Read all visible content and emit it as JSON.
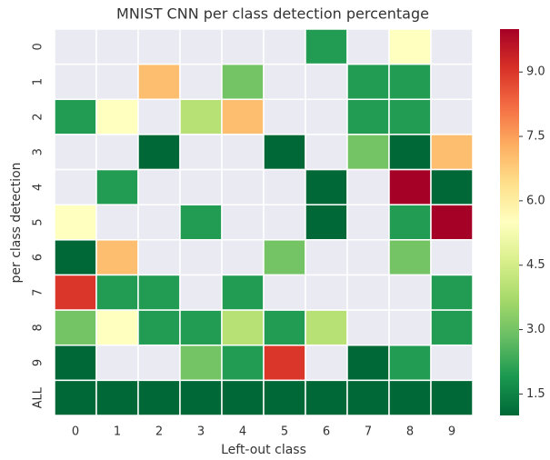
{
  "chart_data": {
    "type": "heatmap",
    "title": "MNIST CNN per class detection percentage",
    "xlabel": "Left-out class",
    "ylabel": "per class detection",
    "x_categories": [
      "0",
      "1",
      "2",
      "3",
      "4",
      "5",
      "6",
      "7",
      "8",
      "9"
    ],
    "y_categories": [
      "0",
      "1",
      "2",
      "3",
      "4",
      "5",
      "6",
      "7",
      "8",
      "9",
      "ALL"
    ],
    "values": [
      [
        null,
        null,
        null,
        null,
        null,
        null,
        2,
        null,
        5.5,
        null
      ],
      [
        null,
        null,
        7,
        null,
        3,
        null,
        null,
        2,
        2,
        null
      ],
      [
        2,
        5.5,
        null,
        4,
        7,
        null,
        null,
        2,
        2,
        null
      ],
      [
        null,
        null,
        1,
        null,
        null,
        1,
        null,
        3,
        1,
        7
      ],
      [
        null,
        2,
        null,
        null,
        null,
        null,
        1,
        null,
        10,
        1
      ],
      [
        5.5,
        null,
        null,
        2,
        null,
        null,
        1,
        null,
        2,
        10
      ],
      [
        1,
        7,
        null,
        null,
        null,
        3,
        null,
        null,
        3,
        null
      ],
      [
        9,
        2,
        2,
        null,
        2,
        null,
        null,
        null,
        null,
        2
      ],
      [
        3,
        5.5,
        2,
        2,
        4,
        2,
        4,
        null,
        null,
        2
      ],
      [
        1,
        null,
        null,
        3,
        2,
        9,
        null,
        1,
        2,
        null
      ],
      [
        1,
        1,
        1,
        1,
        1,
        1,
        1,
        1,
        1,
        1
      ]
    ],
    "vlim": [
      1,
      10
    ],
    "cticks": [
      1.5,
      {
        "value": 3,
        "label": "3.0"
      },
      4.5,
      {
        "value": 6,
        "label": "6.0"
      },
      7.5,
      {
        "value": 9,
        "label": "9.0"
      }
    ],
    "colormap": [
      "#006837",
      "#1a9850",
      "#66bd63",
      "#a6d96a",
      "#d9ef8b",
      "#ffffbf",
      "#fee08b",
      "#fdae61",
      "#f46d43",
      "#d73027",
      "#a50026"
    ],
    "missing_color": "#eaeaf2"
  }
}
